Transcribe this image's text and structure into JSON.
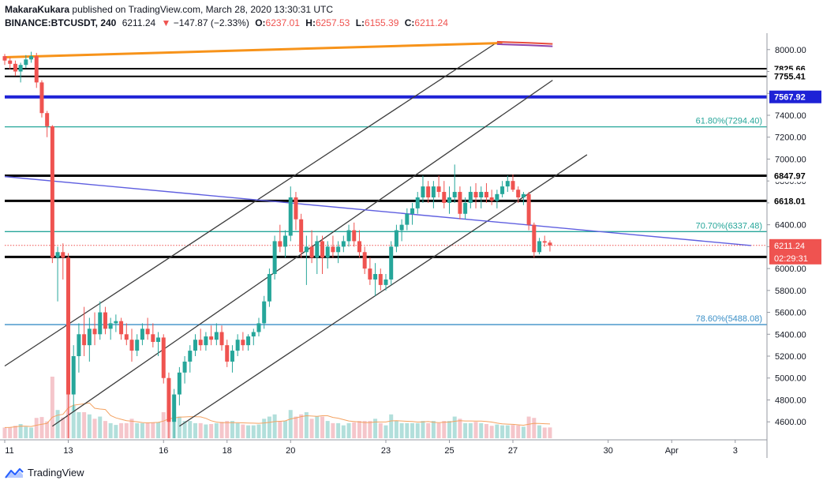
{
  "header": {
    "author": "MakaraKukara",
    "published": "published on TradingView.com, March 28, 2020 13:30:31 UTC",
    "symbol": "BINANCE:BTCUSDT, 240",
    "last": "6211.24",
    "change": "−147.87 (−2.33%)",
    "o_label": "O:",
    "o_value": "6237.01",
    "h_label": "H:",
    "h_value": "6257.53",
    "l_label": "L:",
    "l_value": "6155.39",
    "c_label": "C:",
    "c_value": "6211.24"
  },
  "footer": {
    "brand": "TradingView"
  },
  "colors": {
    "up": "#26a69a",
    "down": "#ef5350",
    "up_volume": "#b2dfdb",
    "down_volume": "#f5c6cb",
    "fib": "#26a69a",
    "fib_786": "#3a8fc7",
    "trendline": "#5f5fe0",
    "blue_level": "#1e22d6",
    "orange": "#f7931a"
  },
  "chart_data": {
    "type": "candlestick",
    "symbol": "BINANCE:BTCUSDT",
    "timeframe": "240",
    "ylim": [
      4450,
      8150
    ],
    "y_ticks": [
      8000,
      7800,
      7600,
      7400,
      7200,
      7000,
      6800,
      6600,
      6400,
      6200,
      6000,
      5800,
      5600,
      5400,
      5200,
      5000,
      4800,
      4600
    ],
    "y_tick_labels": [
      "8000.00",
      "7800.00",
      "7600.00",
      "7400.00",
      "7200.00",
      "7000.00",
      "6800.00",
      "6600.00",
      "6400.00",
      "6200.00",
      "6000.00",
      "5800.00",
      "5600.00",
      "5400.00",
      "5200.00",
      "5000.00",
      "4800.00",
      "4600.00"
    ],
    "x_start": "2020-03-11T00:00",
    "x_end": "2020-04-04T00:00",
    "x_ticks": [
      {
        "t": "2020-03-11T00:00",
        "label": "11"
      },
      {
        "t": "2020-03-13T00:00",
        "label": "13"
      },
      {
        "t": "2020-03-16T00:00",
        "label": "16"
      },
      {
        "t": "2020-03-18T00:00",
        "label": "18"
      },
      {
        "t": "2020-03-20T00:00",
        "label": "20"
      },
      {
        "t": "2020-03-23T00:00",
        "label": "23"
      },
      {
        "t": "2020-03-25T00:00",
        "label": "25"
      },
      {
        "t": "2020-03-27T00:00",
        "label": "27"
      },
      {
        "t": "2020-03-30T00:00",
        "label": "30"
      },
      {
        "t": "2020-04-01T00:00",
        "label": "Apr"
      },
      {
        "t": "2020-04-03T00:00",
        "label": "3"
      }
    ],
    "horizontal_levels": [
      {
        "price": 7825.66,
        "label": "7825.66",
        "style": "black"
      },
      {
        "price": 7755.41,
        "label": "7755.41",
        "style": "black"
      },
      {
        "price": 7567.92,
        "label": "7567.92",
        "style": "blue"
      },
      {
        "price": 6847.97,
        "label": "6847.97",
        "style": "black"
      },
      {
        "price": 6618.01,
        "label": "6618.01",
        "style": "black"
      },
      {
        "price": 6106.07,
        "label": "6106.07",
        "style": "black"
      }
    ],
    "fib_levels": [
      {
        "price": 7294.4,
        "label": "61.80%(7294.40)"
      },
      {
        "price": 6337.48,
        "label": "70.70%(6337.48)"
      },
      {
        "price": 5488.08,
        "label": "78.60%(5488.08)"
      }
    ],
    "last_price": {
      "price": 6211.24,
      "label": "6211.24",
      "countdown": "02:29:31"
    },
    "channels": [
      {
        "p1": {
          "t": "2020-03-11T00:00",
          "price": 5110
        },
        "p2": {
          "t": "2020-03-26T10:00",
          "price": 8050
        }
      },
      {
        "p1": {
          "t": "2020-03-12T12:00",
          "price": 4560
        },
        "p2": {
          "t": "2020-03-28T06:00",
          "price": 7720
        }
      },
      {
        "p1": {
          "t": "2020-03-16T12:00",
          "price": 4560
        },
        "p2": {
          "t": "2020-03-29T08:00",
          "price": 7040
        }
      }
    ],
    "trendline": {
      "p1": {
        "t": "2020-03-11T00:00",
        "price": 6840
      },
      "p2": {
        "t": "2020-04-03T12:00",
        "price": 6210
      }
    },
    "orange_line": {
      "p1": {
        "t": "2020-03-11T00:00",
        "price": 7930
      },
      "p2": {
        "t": "2020-03-26T16:00",
        "price": 8060
      }
    },
    "moving_average_tail": [
      {
        "t": "2020-03-26T12:00",
        "price": 8050
      },
      {
        "t": "2020-03-27T12:00",
        "price": 8040
      },
      {
        "t": "2020-03-28T06:00",
        "price": 8030
      }
    ],
    "candles_4h": [
      {
        "t": "2020-03-11T00:00",
        "o": 7940,
        "h": 7960,
        "l": 7860,
        "c": 7900
      },
      {
        "t": "2020-03-11T04:00",
        "o": 7900,
        "h": 7930,
        "l": 7820,
        "c": 7870
      },
      {
        "t": "2020-03-11T08:00",
        "o": 7870,
        "h": 7900,
        "l": 7760,
        "c": 7800
      },
      {
        "t": "2020-03-11T12:00",
        "o": 7800,
        "h": 7880,
        "l": 7700,
        "c": 7860
      },
      {
        "t": "2020-03-11T16:00",
        "o": 7860,
        "h": 7950,
        "l": 7830,
        "c": 7910
      },
      {
        "t": "2020-03-11T20:00",
        "o": 7910,
        "h": 7980,
        "l": 7880,
        "c": 7940
      },
      {
        "t": "2020-03-12T00:00",
        "o": 7940,
        "h": 7970,
        "l": 7650,
        "c": 7700
      },
      {
        "t": "2020-03-12T04:00",
        "o": 7700,
        "h": 7720,
        "l": 7380,
        "c": 7420
      },
      {
        "t": "2020-03-12T08:00",
        "o": 7420,
        "h": 7440,
        "l": 7200,
        "c": 7300
      },
      {
        "t": "2020-03-12T12:00",
        "o": 7300,
        "h": 7310,
        "l": 6050,
        "c": 6100
      },
      {
        "t": "2020-03-12T16:00",
        "o": 6100,
        "h": 6200,
        "l": 5700,
        "c": 6150
      },
      {
        "t": "2020-03-12T20:00",
        "o": 6150,
        "h": 6230,
        "l": 5900,
        "c": 6100
      },
      {
        "t": "2020-03-13T00:00",
        "o": 6100,
        "h": 6140,
        "l": 4450,
        "c": 4850
      },
      {
        "t": "2020-03-13T04:00",
        "o": 4850,
        "h": 5300,
        "l": 4700,
        "c": 5200
      },
      {
        "t": "2020-03-13T08:00",
        "o": 5200,
        "h": 5500,
        "l": 5050,
        "c": 5400
      },
      {
        "t": "2020-03-13T12:00",
        "o": 5400,
        "h": 5650,
        "l": 5200,
        "c": 5300
      },
      {
        "t": "2020-03-13T16:00",
        "o": 5300,
        "h": 5550,
        "l": 5150,
        "c": 5450
      },
      {
        "t": "2020-03-13T20:00",
        "o": 5450,
        "h": 5600,
        "l": 5300,
        "c": 5400
      },
      {
        "t": "2020-03-14T00:00",
        "o": 5400,
        "h": 5700,
        "l": 5350,
        "c": 5600
      },
      {
        "t": "2020-03-14T04:00",
        "o": 5600,
        "h": 5650,
        "l": 5400,
        "c": 5450
      },
      {
        "t": "2020-03-14T08:00",
        "o": 5450,
        "h": 5550,
        "l": 5350,
        "c": 5500
      },
      {
        "t": "2020-03-14T12:00",
        "o": 5500,
        "h": 5580,
        "l": 5420,
        "c": 5520
      },
      {
        "t": "2020-03-14T16:00",
        "o": 5520,
        "h": 5550,
        "l": 5350,
        "c": 5400
      },
      {
        "t": "2020-03-14T20:00",
        "o": 5400,
        "h": 5500,
        "l": 5300,
        "c": 5350
      },
      {
        "t": "2020-03-15T00:00",
        "o": 5350,
        "h": 5450,
        "l": 5150,
        "c": 5250
      },
      {
        "t": "2020-03-15T04:00",
        "o": 5250,
        "h": 5400,
        "l": 5200,
        "c": 5350
      },
      {
        "t": "2020-03-15T08:00",
        "o": 5350,
        "h": 5500,
        "l": 5300,
        "c": 5450
      },
      {
        "t": "2020-03-15T12:00",
        "o": 5450,
        "h": 5550,
        "l": 5350,
        "c": 5400
      },
      {
        "t": "2020-03-15T16:00",
        "o": 5400,
        "h": 5500,
        "l": 5280,
        "c": 5330
      },
      {
        "t": "2020-03-15T20:00",
        "o": 5330,
        "h": 5420,
        "l": 5200,
        "c": 5370
      },
      {
        "t": "2020-03-16T00:00",
        "o": 5370,
        "h": 5400,
        "l": 4950,
        "c": 5000
      },
      {
        "t": "2020-03-16T04:00",
        "o": 5000,
        "h": 5050,
        "l": 4450,
        "c": 4600
      },
      {
        "t": "2020-03-16T08:00",
        "o": 4600,
        "h": 4900,
        "l": 4450,
        "c": 4850
      },
      {
        "t": "2020-03-16T12:00",
        "o": 4850,
        "h": 5100,
        "l": 4750,
        "c": 5050
      },
      {
        "t": "2020-03-16T16:00",
        "o": 5050,
        "h": 5200,
        "l": 4950,
        "c": 5150
      },
      {
        "t": "2020-03-16T20:00",
        "o": 5150,
        "h": 5300,
        "l": 5050,
        "c": 5250
      },
      {
        "t": "2020-03-17T00:00",
        "o": 5250,
        "h": 5400,
        "l": 5200,
        "c": 5350
      },
      {
        "t": "2020-03-17T04:00",
        "o": 5350,
        "h": 5450,
        "l": 5250,
        "c": 5300
      },
      {
        "t": "2020-03-17T08:00",
        "o": 5300,
        "h": 5420,
        "l": 5250,
        "c": 5380
      },
      {
        "t": "2020-03-17T12:00",
        "o": 5380,
        "h": 5480,
        "l": 5300,
        "c": 5350
      },
      {
        "t": "2020-03-17T16:00",
        "o": 5350,
        "h": 5500,
        "l": 5300,
        "c": 5420
      },
      {
        "t": "2020-03-17T20:00",
        "o": 5420,
        "h": 5480,
        "l": 5250,
        "c": 5300
      },
      {
        "t": "2020-03-18T00:00",
        "o": 5300,
        "h": 5350,
        "l": 5100,
        "c": 5150
      },
      {
        "t": "2020-03-18T04:00",
        "o": 5150,
        "h": 5300,
        "l": 5050,
        "c": 5250
      },
      {
        "t": "2020-03-18T08:00",
        "o": 5250,
        "h": 5400,
        "l": 5200,
        "c": 5350
      },
      {
        "t": "2020-03-18T12:00",
        "o": 5350,
        "h": 5420,
        "l": 5250,
        "c": 5300
      },
      {
        "t": "2020-03-18T16:00",
        "o": 5300,
        "h": 5400,
        "l": 5250,
        "c": 5380
      },
      {
        "t": "2020-03-18T20:00",
        "o": 5380,
        "h": 5450,
        "l": 5300,
        "c": 5420
      },
      {
        "t": "2020-03-19T00:00",
        "o": 5420,
        "h": 5550,
        "l": 5380,
        "c": 5500
      },
      {
        "t": "2020-03-19T04:00",
        "o": 5500,
        "h": 5750,
        "l": 5450,
        "c": 5700
      },
      {
        "t": "2020-03-19T08:00",
        "o": 5700,
        "h": 6000,
        "l": 5650,
        "c": 5950
      },
      {
        "t": "2020-03-19T12:00",
        "o": 5950,
        "h": 6300,
        "l": 5900,
        "c": 6250
      },
      {
        "t": "2020-03-19T16:00",
        "o": 6250,
        "h": 6400,
        "l": 6150,
        "c": 6200
      },
      {
        "t": "2020-03-19T20:00",
        "o": 6200,
        "h": 6350,
        "l": 6100,
        "c": 6300
      },
      {
        "t": "2020-03-20T00:00",
        "o": 6300,
        "h": 6750,
        "l": 6250,
        "c": 6650
      },
      {
        "t": "2020-03-20T04:00",
        "o": 6650,
        "h": 6700,
        "l": 6350,
        "c": 6450
      },
      {
        "t": "2020-03-20T08:00",
        "o": 6450,
        "h": 6500,
        "l": 6100,
        "c": 6150
      },
      {
        "t": "2020-03-20T12:00",
        "o": 6150,
        "h": 6300,
        "l": 5850,
        "c": 6200
      },
      {
        "t": "2020-03-20T16:00",
        "o": 6200,
        "h": 6350,
        "l": 6050,
        "c": 6100
      },
      {
        "t": "2020-03-20T20:00",
        "o": 6100,
        "h": 6300,
        "l": 5950,
        "c": 6250
      },
      {
        "t": "2020-03-21T00:00",
        "o": 6250,
        "h": 6300,
        "l": 5950,
        "c": 6100
      },
      {
        "t": "2020-03-21T04:00",
        "o": 6100,
        "h": 6250,
        "l": 6000,
        "c": 6200
      },
      {
        "t": "2020-03-21T08:00",
        "o": 6200,
        "h": 6300,
        "l": 6100,
        "c": 6150
      },
      {
        "t": "2020-03-21T12:00",
        "o": 6150,
        "h": 6250,
        "l": 6050,
        "c": 6200
      },
      {
        "t": "2020-03-21T16:00",
        "o": 6200,
        "h": 6300,
        "l": 6150,
        "c": 6250
      },
      {
        "t": "2020-03-21T20:00",
        "o": 6250,
        "h": 6400,
        "l": 6200,
        "c": 6350
      },
      {
        "t": "2020-03-22T00:00",
        "o": 6350,
        "h": 6420,
        "l": 6200,
        "c": 6250
      },
      {
        "t": "2020-03-22T04:00",
        "o": 6250,
        "h": 6350,
        "l": 6100,
        "c": 6150
      },
      {
        "t": "2020-03-22T08:00",
        "o": 6150,
        "h": 6200,
        "l": 5950,
        "c": 6000
      },
      {
        "t": "2020-03-22T12:00",
        "o": 6000,
        "h": 6100,
        "l": 5850,
        "c": 5900
      },
      {
        "t": "2020-03-22T16:00",
        "o": 5900,
        "h": 6050,
        "l": 5750,
        "c": 5950
      },
      {
        "t": "2020-03-22T20:00",
        "o": 5950,
        "h": 6000,
        "l": 5800,
        "c": 5850
      },
      {
        "t": "2020-03-23T00:00",
        "o": 5850,
        "h": 5950,
        "l": 5800,
        "c": 5900
      },
      {
        "t": "2020-03-23T04:00",
        "o": 5900,
        "h": 6250,
        "l": 5850,
        "c": 6200
      },
      {
        "t": "2020-03-23T08:00",
        "o": 6200,
        "h": 6400,
        "l": 6150,
        "c": 6350
      },
      {
        "t": "2020-03-23T12:00",
        "o": 6350,
        "h": 6450,
        "l": 6250,
        "c": 6400
      },
      {
        "t": "2020-03-23T16:00",
        "o": 6400,
        "h": 6550,
        "l": 6350,
        "c": 6500
      },
      {
        "t": "2020-03-23T20:00",
        "o": 6500,
        "h": 6600,
        "l": 6400,
        "c": 6550
      },
      {
        "t": "2020-03-24T00:00",
        "o": 6550,
        "h": 6700,
        "l": 6500,
        "c": 6650
      },
      {
        "t": "2020-03-24T04:00",
        "o": 6650,
        "h": 6850,
        "l": 6600,
        "c": 6750
      },
      {
        "t": "2020-03-24T08:00",
        "o": 6750,
        "h": 6800,
        "l": 6600,
        "c": 6650
      },
      {
        "t": "2020-03-24T12:00",
        "o": 6650,
        "h": 6800,
        "l": 6550,
        "c": 6750
      },
      {
        "t": "2020-03-24T16:00",
        "o": 6750,
        "h": 6850,
        "l": 6650,
        "c": 6700
      },
      {
        "t": "2020-03-24T20:00",
        "o": 6700,
        "h": 6800,
        "l": 6550,
        "c": 6600
      },
      {
        "t": "2020-03-25T00:00",
        "o": 6600,
        "h": 6750,
        "l": 6500,
        "c": 6650
      },
      {
        "t": "2020-03-25T04:00",
        "o": 6650,
        "h": 6950,
        "l": 6600,
        "c": 6700
      },
      {
        "t": "2020-03-25T08:00",
        "o": 6700,
        "h": 6750,
        "l": 6450,
        "c": 6500
      },
      {
        "t": "2020-03-25T12:00",
        "o": 6500,
        "h": 6650,
        "l": 6450,
        "c": 6600
      },
      {
        "t": "2020-03-25T16:00",
        "o": 6600,
        "h": 6750,
        "l": 6550,
        "c": 6700
      },
      {
        "t": "2020-03-25T20:00",
        "o": 6700,
        "h": 6780,
        "l": 6550,
        "c": 6650
      },
      {
        "t": "2020-03-26T00:00",
        "o": 6650,
        "h": 6750,
        "l": 6550,
        "c": 6700
      },
      {
        "t": "2020-03-26T04:00",
        "o": 6700,
        "h": 6780,
        "l": 6600,
        "c": 6650
      },
      {
        "t": "2020-03-26T08:00",
        "o": 6650,
        "h": 6720,
        "l": 6580,
        "c": 6620
      },
      {
        "t": "2020-03-26T12:00",
        "o": 6620,
        "h": 6720,
        "l": 6550,
        "c": 6680
      },
      {
        "t": "2020-03-26T16:00",
        "o": 6680,
        "h": 6800,
        "l": 6650,
        "c": 6750
      },
      {
        "t": "2020-03-26T20:00",
        "o": 6750,
        "h": 6850,
        "l": 6700,
        "c": 6800
      },
      {
        "t": "2020-03-27T00:00",
        "o": 6800,
        "h": 6860,
        "l": 6700,
        "c": 6720
      },
      {
        "t": "2020-03-27T04:00",
        "o": 6720,
        "h": 6750,
        "l": 6600,
        "c": 6650
      },
      {
        "t": "2020-03-27T08:00",
        "o": 6650,
        "h": 6700,
        "l": 6580,
        "c": 6680
      },
      {
        "t": "2020-03-27T12:00",
        "o": 6680,
        "h": 6700,
        "l": 6350,
        "c": 6400
      },
      {
        "t": "2020-03-27T16:00",
        "o": 6400,
        "h": 6420,
        "l": 6100,
        "c": 6150
      },
      {
        "t": "2020-03-27T20:00",
        "o": 6150,
        "h": 6280,
        "l": 6130,
        "c": 6250
      },
      {
        "t": "2020-03-28T00:00",
        "o": 6250,
        "h": 6300,
        "l": 6200,
        "c": 6237
      },
      {
        "t": "2020-03-28T04:00",
        "o": 6237.01,
        "h": 6257.53,
        "l": 6155.39,
        "c": 6211.24
      }
    ]
  }
}
